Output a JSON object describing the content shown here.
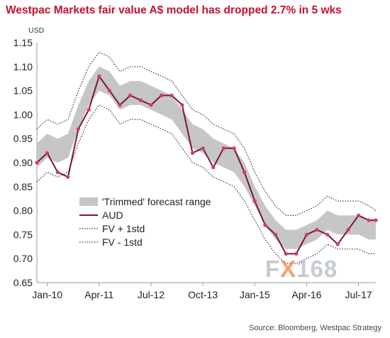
{
  "title": "Westpac Markets fair value A$ model has dropped 2.7% in 5 wks",
  "source": "Source: Bloomberg, Westpac Strategy",
  "watermark": {
    "part1": "F",
    "part2": "X",
    "part3": "168"
  },
  "colors": {
    "title": "#c8102e",
    "aud": "#7a1630",
    "aud_markers": "#d63a5e",
    "band": "#c6c6c6",
    "fv_lines": "#333333",
    "axis": "#999999"
  },
  "chart_data": {
    "type": "line",
    "title": "Westpac Markets fair value A$ model has dropped 2.7% in 5 wks",
    "ylabel": "USD",
    "xlabel": "",
    "ylim": [
      0.65,
      1.15
    ],
    "yticks": [
      "0.65",
      "0.70",
      "0.75",
      "0.80",
      "0.85",
      "0.90",
      "0.95",
      "1.00",
      "1.05",
      "1.10",
      "1.15"
    ],
    "xticks": [
      "Jan-10",
      "Apr-11",
      "Jul-12",
      "Oct-13",
      "Jan-15",
      "Apr-16",
      "Jul-17"
    ],
    "xlim": [
      "2009-10",
      "2017-12"
    ],
    "grid": false,
    "legend_position": "bottom-left",
    "legend": [
      "'Trimmed' forecast range",
      "AUD",
      "FV + 1std",
      "FV - 1std"
    ],
    "x": [
      "2009-10",
      "2010-01",
      "2010-04",
      "2010-07",
      "2010-10",
      "2011-01",
      "2011-04",
      "2011-07",
      "2011-10",
      "2012-01",
      "2012-04",
      "2012-07",
      "2012-10",
      "2013-01",
      "2013-04",
      "2013-07",
      "2013-10",
      "2014-01",
      "2014-04",
      "2014-07",
      "2014-10",
      "2015-01",
      "2015-04",
      "2015-07",
      "2015-10",
      "2016-01",
      "2016-04",
      "2016-07",
      "2016-10",
      "2017-01",
      "2017-04",
      "2017-07",
      "2017-10",
      "2017-12"
    ],
    "series": [
      {
        "name": "AUD",
        "values": [
          0.9,
          0.92,
          0.88,
          0.87,
          0.97,
          1.01,
          1.08,
          1.05,
          1.02,
          1.04,
          1.03,
          1.02,
          1.04,
          1.04,
          1.02,
          0.92,
          0.93,
          0.89,
          0.93,
          0.93,
          0.88,
          0.82,
          0.77,
          0.75,
          0.71,
          0.71,
          0.75,
          0.76,
          0.75,
          0.73,
          0.76,
          0.79,
          0.78,
          0.78
        ]
      },
      {
        "name": "'Trimmed' forecast range",
        "values_low": [
          0.89,
          0.91,
          0.9,
          0.91,
          0.97,
          1.02,
          1.05,
          1.04,
          1.01,
          1.02,
          1.02,
          1.01,
          1.0,
          0.99,
          0.96,
          0.93,
          0.92,
          0.9,
          0.89,
          0.88,
          0.85,
          0.81,
          0.77,
          0.74,
          0.72,
          0.72,
          0.73,
          0.74,
          0.76,
          0.75,
          0.75,
          0.75,
          0.74,
          0.74
        ],
        "values_high": [
          0.94,
          0.96,
          0.95,
          0.96,
          1.02,
          1.07,
          1.1,
          1.09,
          1.06,
          1.07,
          1.07,
          1.06,
          1.05,
          1.04,
          1.01,
          0.98,
          0.97,
          0.95,
          0.94,
          0.93,
          0.9,
          0.85,
          0.81,
          0.78,
          0.76,
          0.76,
          0.77,
          0.78,
          0.8,
          0.79,
          0.79,
          0.79,
          0.78,
          0.78
        ]
      },
      {
        "name": "FV + 1std",
        "values": [
          0.97,
          0.99,
          0.98,
          0.99,
          1.05,
          1.1,
          1.13,
          1.12,
          1.09,
          1.1,
          1.1,
          1.09,
          1.08,
          1.07,
          1.04,
          1.01,
          1.0,
          0.98,
          0.97,
          0.96,
          0.93,
          0.88,
          0.84,
          0.81,
          0.79,
          0.79,
          0.8,
          0.81,
          0.83,
          0.82,
          0.82,
          0.82,
          0.81,
          0.8
        ]
      },
      {
        "name": "FV - 1std",
        "values": [
          0.86,
          0.88,
          0.87,
          0.88,
          0.94,
          0.99,
          1.02,
          1.01,
          0.98,
          0.99,
          0.99,
          0.98,
          0.97,
          0.96,
          0.93,
          0.9,
          0.89,
          0.87,
          0.86,
          0.85,
          0.82,
          0.78,
          0.74,
          0.71,
          0.69,
          0.69,
          0.7,
          0.71,
          0.73,
          0.72,
          0.72,
          0.72,
          0.71,
          0.71
        ]
      }
    ]
  }
}
